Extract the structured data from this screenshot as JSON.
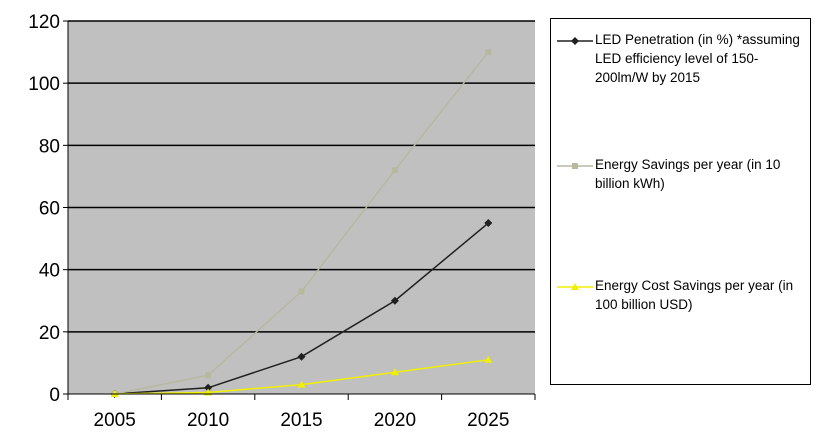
{
  "chart_data": {
    "type": "line",
    "x": [
      2005,
      2010,
      2015,
      2020,
      2025
    ],
    "xticks": [
      "2005",
      "2010",
      "2015",
      "2020",
      "2025"
    ],
    "yticks": [
      "0",
      "20",
      "40",
      "60",
      "80",
      "100",
      "120"
    ],
    "ylim": [
      0,
      120
    ],
    "grid": "horizontal",
    "legend_position": "right",
    "plot_background": "#c0c0c0",
    "series": [
      {
        "name": "LED Penetration (in %) *assuming LED efficiency level of 150-200lm/W by 2015",
        "values": [
          0,
          2,
          12,
          30,
          55
        ],
        "color": "#202020",
        "marker": "diamond"
      },
      {
        "name": "Energy Savings per year (in 10 billion kWh)",
        "values": [
          0,
          6,
          33,
          72,
          110
        ],
        "color": "#b8b8a0",
        "marker": "square"
      },
      {
        "name": "Energy Cost Savings per year (in 100 billion USD)",
        "values": [
          0,
          0.5,
          3,
          7,
          11
        ],
        "color": "#f0f000",
        "marker": "triangle"
      }
    ]
  }
}
